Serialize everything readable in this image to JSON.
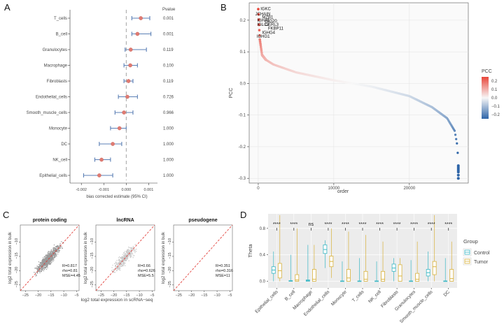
{
  "panels": [
    "A",
    "B",
    "C",
    "D"
  ],
  "chart_data": [
    {
      "id": "A",
      "type": "scatter",
      "subtype": "forest",
      "categories": [
        "T_cells",
        "B_cell",
        "Granulocytes",
        "Macrophage",
        "Fibroblasts",
        "Endothelial_cells",
        "Smooth_muscle_cells",
        "Monocyte",
        "DC",
        "NK_cell",
        "Epithelial_cells"
      ],
      "estimate": [
        0.00065,
        0.0005,
        0.0002,
        0.00018,
        0.0001,
        5e-05,
        -0.0001,
        -0.0003,
        -0.0006,
        -0.0011,
        -0.0012
      ],
      "ci_low": [
        0.00025,
        0.00025,
        -5e-05,
        -0.0001,
        -0.0001,
        -0.00035,
        -0.0005,
        -0.0007,
        -0.0012,
        -0.0014,
        -0.0019
      ],
      "ci_high": [
        0.00105,
        0.0011,
        0.0009,
        0.0005,
        0.0003,
        0.0005,
        0.0003,
        0.0,
        -0.0002,
        -0.0007,
        -0.0006
      ],
      "pvalues": [
        "0.001",
        "0.001",
        "0.119",
        "0.100",
        "0.119",
        "0.726",
        "0.966",
        "1.000",
        "1.000",
        "1.000",
        "1.000"
      ],
      "pvalue_header": "Pvalue",
      "xlabel": "bias  corrected  estimate (95% CI)",
      "xlim": [
        -0.0021,
        0.0013
      ],
      "xticks": [
        -0.002,
        -0.001,
        0.0,
        0.001
      ],
      "xtick_labels": [
        "-0.002",
        "-0.001",
        "0.000",
        "0.001"
      ],
      "reference_line": 0
    },
    {
      "id": "B",
      "type": "scatter",
      "xlabel": "order",
      "ylabel": "PCC",
      "xlim": [
        -1200,
        27800
      ],
      "ylim": [
        -0.315,
        0.255
      ],
      "xticks": [
        0,
        10000,
        20000
      ],
      "xtick_labels": [
        "0",
        "10000",
        "20000"
      ],
      "yticks": [
        -0.3,
        -0.2,
        -0.1,
        0.0,
        0.1,
        0.2
      ],
      "ytick_labels": [
        "-0.3",
        "-0.2",
        "-0.1",
        "0.0",
        "0.1",
        "0.2"
      ],
      "n_points": 26500,
      "curve_anchor_order": [
        0,
        200,
        500,
        1000,
        2000,
        5000,
        10000,
        15000,
        20000,
        23000,
        25000,
        26000,
        26300,
        26400,
        26450,
        26500
      ],
      "curve_anchor_pcc": [
        0.235,
        0.14,
        0.09,
        0.075,
        0.06,
        0.035,
        0.01,
        -0.01,
        -0.04,
        -0.075,
        -0.11,
        -0.15,
        -0.19,
        -0.22,
        -0.25,
        -0.3
      ],
      "tail_points": [
        -0.26,
        -0.265,
        -0.27,
        -0.275,
        -0.28,
        -0.29,
        -0.3
      ],
      "gene_labels": [
        {
          "gene": "IGKC",
          "order": 300,
          "pcc": 0.232
        },
        {
          "gene": "JCHAIN",
          "order": -400,
          "pcc": 0.215
        },
        {
          "gene": "MZB1",
          "order": 500,
          "pcc": 0.205
        },
        {
          "gene": "IGHA1",
          "order": -150,
          "pcc": 0.195
        },
        {
          "gene": "ISG20",
          "order": 900,
          "pcc": 0.193
        },
        {
          "gene": "IGLC2",
          "order": -150,
          "pcc": 0.182
        },
        {
          "gene": "DERL3",
          "order": 900,
          "pcc": 0.182
        },
        {
          "gene": "FKBP11",
          "order": 1300,
          "pcc": 0.17
        },
        {
          "gene": "IGHG4",
          "order": 500,
          "pcc": 0.157
        },
        {
          "gene": "IGHG1",
          "order": -200,
          "pcc": 0.144
        }
      ],
      "legend": {
        "title": "PCC",
        "ticks": [
          0.2,
          0.1,
          0.0,
          -0.1,
          -0.2
        ],
        "tick_labels": [
          "0.2",
          "0.1",
          "0.0",
          "−0.1",
          "−0.2"
        ],
        "high_color": "#e8463a",
        "mid_color": "#f7f7f7",
        "low_color": "#2e65a8"
      }
    },
    {
      "id": "C",
      "type": "scatter",
      "subtype": "density-scatter",
      "xlabel": "log2 total expression in scRNA−seq",
      "ylabel": "log2 total expression in bulk",
      "xlim": [
        -27,
        -4
      ],
      "ylim": [
        -27,
        -4
      ],
      "xticks": [
        -25,
        -20,
        -15,
        -10,
        -5
      ],
      "xtick_labels": [
        "−25",
        "−20",
        "−15",
        "−10",
        "−5"
      ],
      "yticks": [
        -25,
        -20,
        -15,
        -10
      ],
      "ytick_labels": [
        "−25",
        "−20",
        "−15",
        "−10"
      ],
      "facets": [
        {
          "title": "protein coding",
          "stats": [
            "R=0.817",
            "rho=0.81",
            "MSE=4.45"
          ],
          "density": "high"
        },
        {
          "title": "lncRNA",
          "stats": [
            "R=0.66",
            "rho=0.626",
            "MSE=5.5"
          ],
          "density": "low"
        },
        {
          "title": "pseudogene",
          "stats": [
            "R=0.351",
            "rho=0.316",
            "MSE=11"
          ],
          "density": "none"
        }
      ]
    },
    {
      "id": "D",
      "type": "box",
      "categories": [
        "Epithelial_cells",
        "B_cell",
        "Macrophage",
        "Endothelial_cells",
        "Monocyte",
        "T_cells",
        "NK_cell",
        "Fibroblasts",
        "Granulocytes",
        "Smooth_muscle_cells",
        "DC"
      ],
      "ylabel": "Theta",
      "ylim": [
        -0.1,
        1.02
      ],
      "yticks": [
        0.0,
        0.4,
        0.8
      ],
      "ytick_labels": [
        "0.0",
        "0.4",
        "0.8"
      ],
      "significance": [
        "****",
        "****",
        "ns",
        "****",
        "****",
        "****",
        "****",
        "****",
        "****",
        "****",
        "****"
      ],
      "series": [
        {
          "name": "Control",
          "color": "#3ab7c5",
          "q1": [
            0.12,
            0.0,
            0.0,
            0.42,
            0.0,
            0.0,
            0.0,
            0.15,
            0.0,
            0.08,
            0.0
          ],
          "median": [
            0.17,
            0.005,
            0.01,
            0.48,
            0.002,
            0.002,
            0.002,
            0.2,
            0.002,
            0.13,
            0.002
          ],
          "q3": [
            0.22,
            0.01,
            0.02,
            0.55,
            0.005,
            0.005,
            0.005,
            0.26,
            0.005,
            0.18,
            0.005
          ],
          "vmin": [
            0.0,
            0.0,
            0.0,
            0.2,
            0.0,
            0.0,
            0.0,
            0.0,
            0.0,
            0.0,
            0.0
          ],
          "vmax": [
            0.45,
            0.4,
            0.55,
            0.62,
            0.3,
            0.35,
            0.3,
            0.35,
            0.32,
            0.45,
            0.35
          ]
        },
        {
          "name": "Tumor",
          "color": "#d9b23c",
          "q1": [
            0.05,
            0.0,
            0.0,
            0.22,
            0.0,
            0.0,
            0.0,
            0.0,
            0.0,
            0.1,
            0.0
          ],
          "median": [
            0.16,
            0.02,
            0.03,
            0.3,
            0.05,
            0.03,
            0.03,
            0.08,
            0.03,
            0.22,
            0.04
          ],
          "q3": [
            0.27,
            0.1,
            0.18,
            0.38,
            0.18,
            0.15,
            0.15,
            0.25,
            0.12,
            0.3,
            0.18
          ],
          "vmin": [
            0.0,
            0.0,
            0.0,
            0.05,
            0.0,
            0.0,
            0.0,
            0.0,
            0.0,
            0.0,
            0.0
          ],
          "vmax": [
            1.0,
            0.8,
            0.55,
            0.8,
            0.75,
            0.7,
            0.6,
            0.35,
            0.6,
            1.0,
            0.6
          ]
        }
      ],
      "legend": {
        "title": "Group"
      }
    }
  ]
}
